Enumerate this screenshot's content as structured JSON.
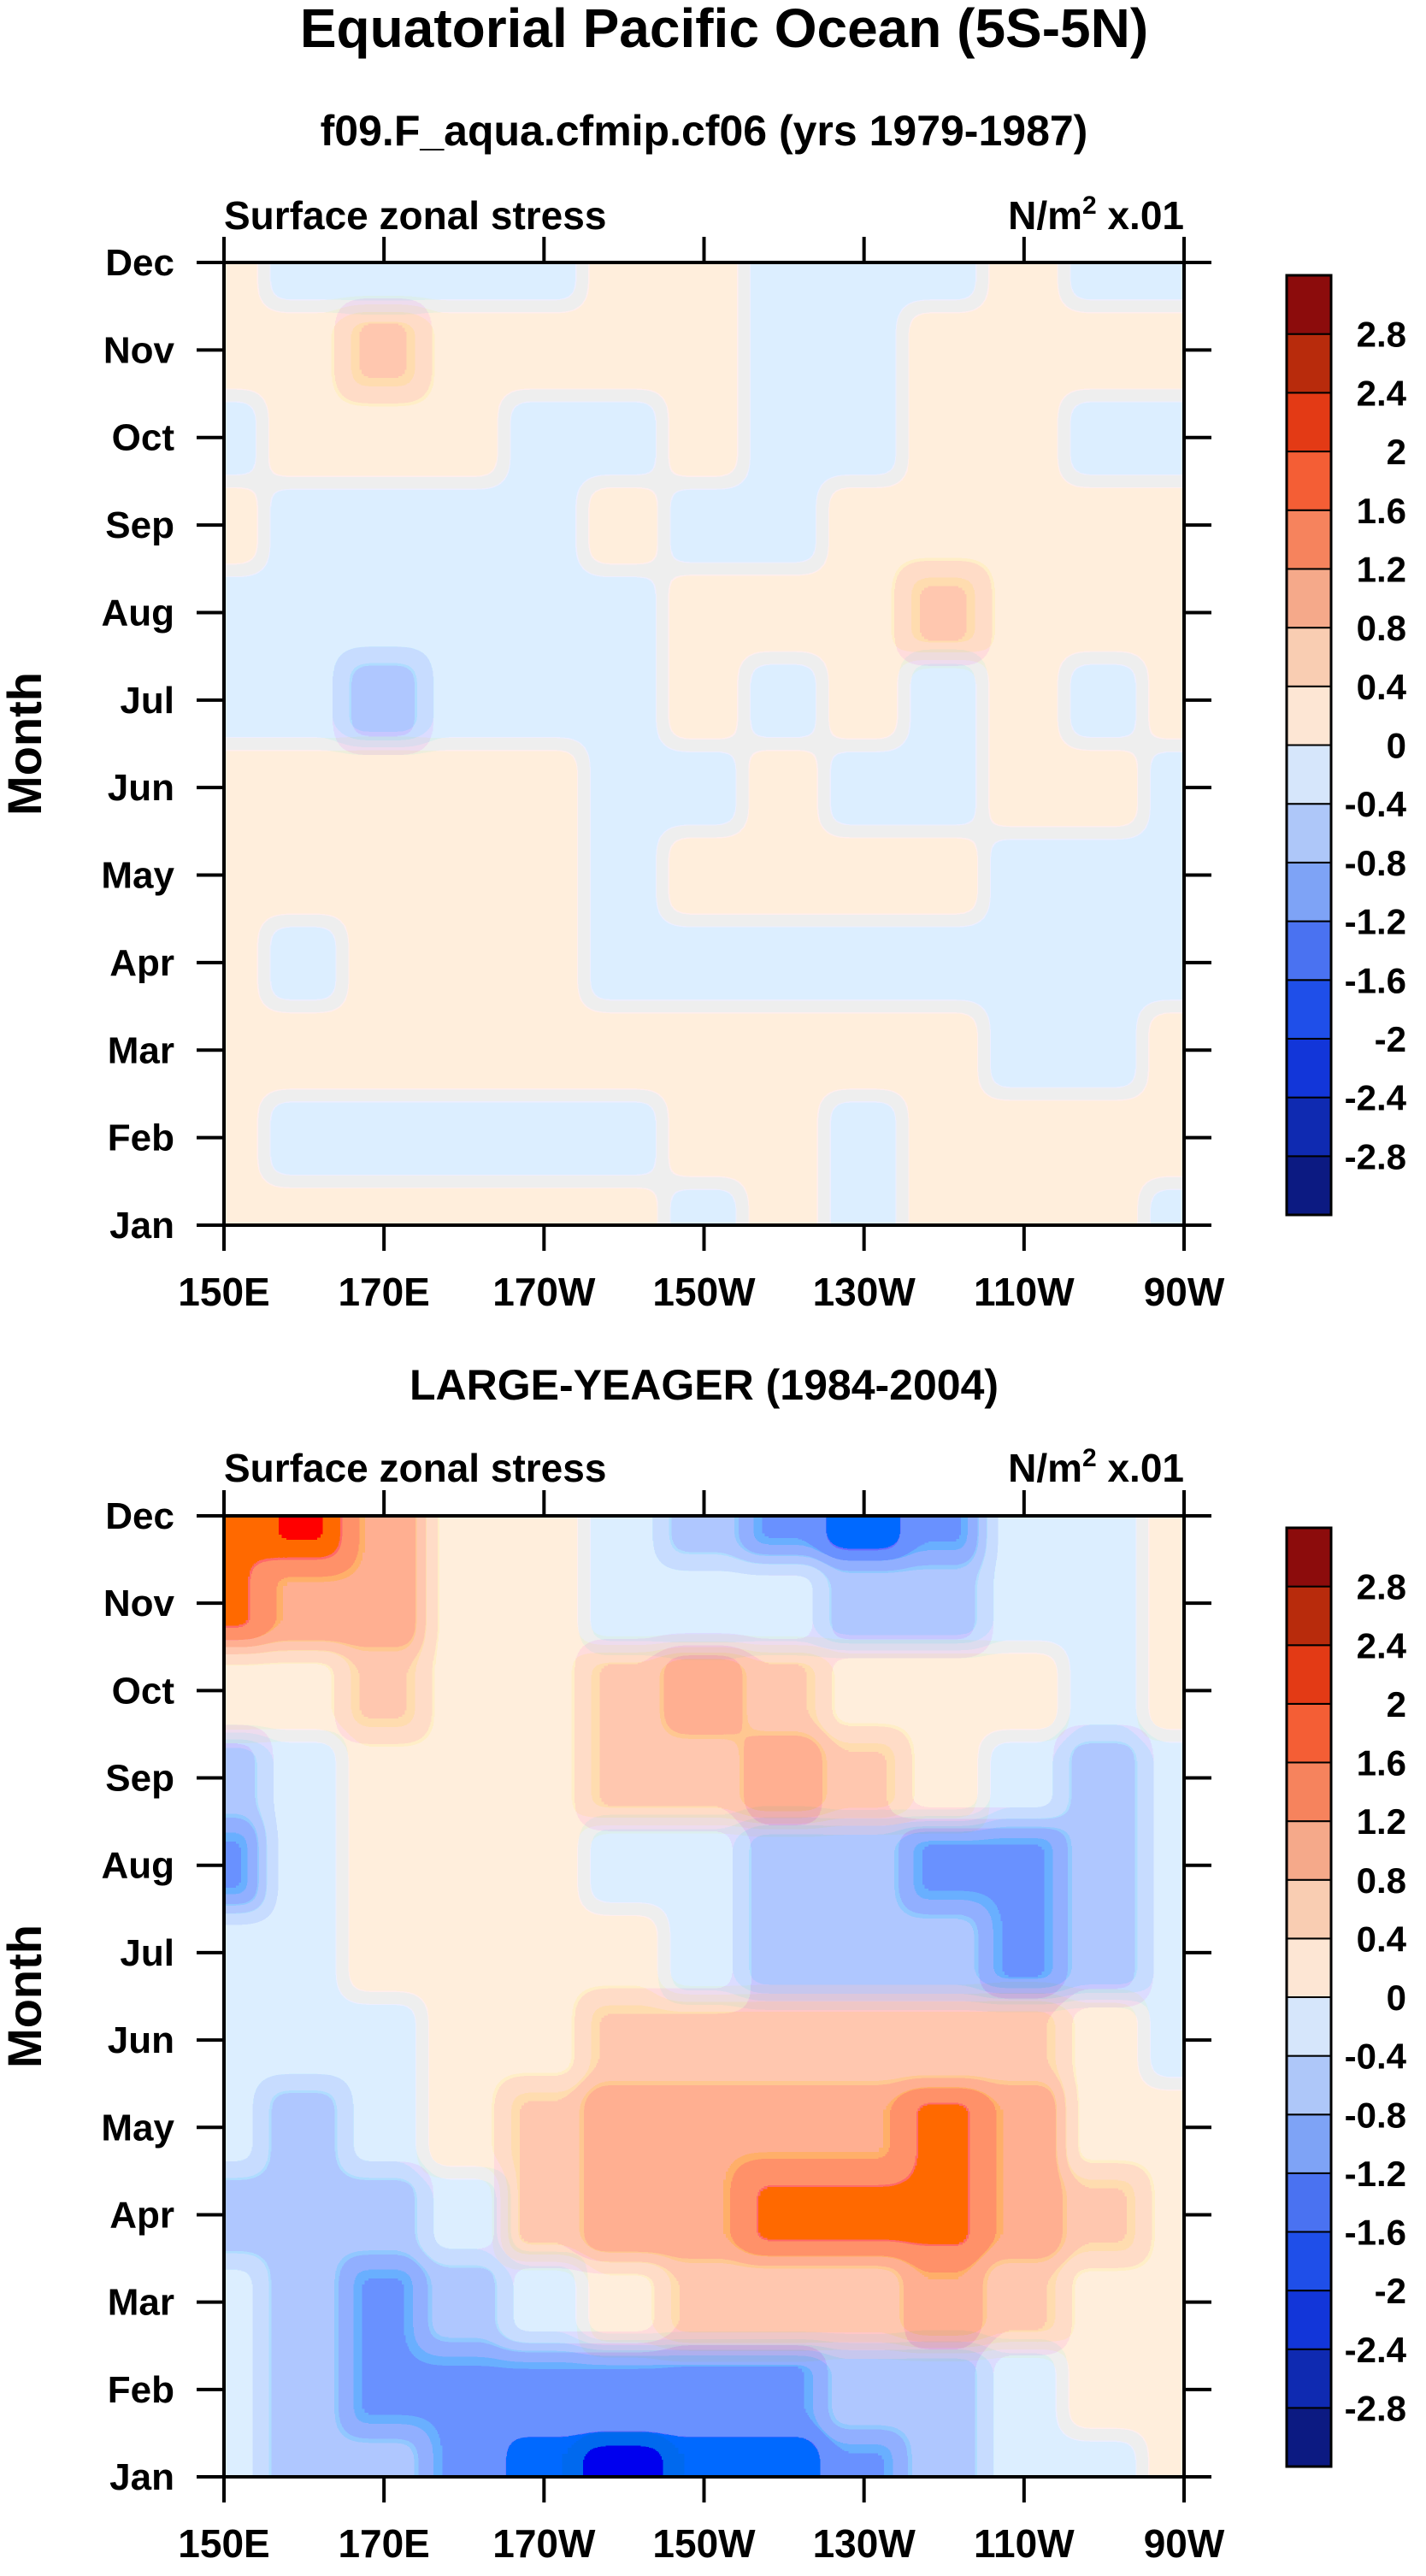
{
  "page_title": "Equatorial Pacific Ocean (5S-5N)",
  "colorbar": {
    "levels": [
      "-2.8",
      "-2.4",
      "-2",
      "-1.6",
      "-1.2",
      "-0.8",
      "-0.4",
      "0",
      "0.4",
      "0.8",
      "1.2",
      "1.6",
      "2",
      "2.4",
      "2.8"
    ],
    "colors": [
      "#0c1a82",
      "#0f2ab1",
      "#1236d9",
      "#1f4fe9",
      "#4a72f1",
      "#7ea3f6",
      "#aec7f9",
      "#d6e6fb",
      "#fde6d4",
      "#f9cdb2",
      "#f5a98a",
      "#f6835d",
      "#f45e35",
      "#e33a15",
      "#b82b0c",
      "#8c0c0c"
    ]
  },
  "chart_data": [
    {
      "type": "heatmap",
      "title": "f09.F_aqua.cfmip.cf06 (yrs 1979-1987)",
      "subtitle_left": "Surface zonal stress",
      "units_main": "N/m",
      "units_sup": "2",
      "units_scale": " x.01",
      "ylabel": "Month",
      "x_labels": [
        "150E",
        "170E",
        "170W",
        "150W",
        "130W",
        "110W",
        "90W"
      ],
      "x_values_deg_east": [
        150,
        170,
        190,
        210,
        230,
        250,
        270
      ],
      "y_labels": [
        "Jan",
        "Feb",
        "Mar",
        "Apr",
        "May",
        "Jun",
        "Jul",
        "Aug",
        "Sep",
        "Oct",
        "Nov",
        "Dec"
      ],
      "xlim": [
        150,
        270
      ],
      "ylim": [
        1,
        12
      ],
      "z": [
        [
          0.2,
          0.1,
          0.2,
          0.1,
          0.0,
          0.1,
          -0.1,
          0.1,
          -0.1,
          0.2,
          0.1,
          0.0,
          -0.1
        ],
        [
          0.1,
          -0.2,
          -0.2,
          -0.3,
          -0.2,
          -0.2,
          0.0,
          0.1,
          -0.1,
          0.1,
          0.0,
          0.1,
          0.2
        ],
        [
          0.2,
          0.2,
          0.3,
          0.1,
          0.2,
          0.1,
          0.2,
          0.1,
          0.0,
          0.0,
          -0.1,
          -0.1,
          0.0
        ],
        [
          0.1,
          -0.1,
          0.1,
          0.2,
          0.1,
          -0.1,
          -0.2,
          -0.1,
          -0.1,
          -0.1,
          -0.1,
          -0.2,
          -0.1
        ],
        [
          0.2,
          0.2,
          0.2,
          0.2,
          0.1,
          -0.1,
          0.1,
          0.2,
          0.1,
          0.0,
          -0.1,
          -0.2,
          -0.1
        ],
        [
          0.1,
          0.2,
          0.1,
          0.2,
          0.0,
          -0.1,
          -0.1,
          0.0,
          -0.1,
          -0.1,
          0.1,
          0.0,
          -0.1
        ],
        [
          -0.1,
          -0.1,
          -0.6,
          -0.3,
          -0.1,
          -0.1,
          0.3,
          -0.1,
          0.0,
          -0.1,
          0.2,
          -0.1,
          0.1
        ],
        [
          -0.1,
          -0.2,
          -0.3,
          -0.2,
          -0.1,
          -0.1,
          0.1,
          0.1,
          0.2,
          0.5,
          0.1,
          0.0,
          0.1
        ],
        [
          0.1,
          -0.1,
          -0.1,
          -0.2,
          -0.1,
          0.1,
          -0.1,
          -0.1,
          0.1,
          0.1,
          0.1,
          0.1,
          0.1
        ],
        [
          -0.1,
          0.1,
          0.1,
          0.2,
          -0.1,
          -0.1,
          0.0,
          -0.1,
          -0.1,
          0.1,
          0.1,
          -0.1,
          -0.1
        ],
        [
          0.2,
          0.2,
          0.5,
          0.2,
          0.1,
          0.1,
          0.1,
          -0.1,
          -0.1,
          0.1,
          0.1,
          0.1,
          0.2
        ],
        [
          0.0,
          -0.1,
          -0.1,
          -0.1,
          -0.1,
          0.1,
          0.2,
          -0.1,
          -0.1,
          -0.1,
          0.1,
          -0.1,
          -0.1
        ]
      ]
    },
    {
      "type": "heatmap",
      "title": "LARGE-YEAGER (1984-2004)",
      "subtitle_left": "Surface zonal stress",
      "units_main": "N/m",
      "units_sup": "2",
      "units_scale": " x.01",
      "ylabel": "Month",
      "x_labels": [
        "150E",
        "170E",
        "170W",
        "150W",
        "130W",
        "110W",
        "90W"
      ],
      "x_values_deg_east": [
        150,
        170,
        190,
        210,
        230,
        250,
        270
      ],
      "y_labels": [
        "Jan",
        "Feb",
        "Mar",
        "Apr",
        "May",
        "Jun",
        "Jul",
        "Aug",
        "Sep",
        "Oct",
        "Nov",
        "Dec"
      ],
      "xlim": [
        150,
        270
      ],
      "ylim": [
        1,
        12
      ],
      "z": [
        [
          -0.2,
          -0.5,
          -0.7,
          -0.9,
          -1.3,
          -1.7,
          -1.5,
          -1.4,
          -1.0,
          -0.7,
          -0.4,
          -0.2,
          0.1
        ],
        [
          -0.3,
          -0.6,
          -1.0,
          -1.0,
          -1.2,
          -1.2,
          -1.0,
          -0.9,
          -0.7,
          -0.5,
          -0.3,
          0.0,
          0.2
        ],
        [
          -0.4,
          -0.7,
          -1.2,
          -0.8,
          -0.3,
          0.3,
          0.6,
          0.6,
          0.7,
          0.8,
          0.6,
          0.2,
          0.1
        ],
        [
          -0.5,
          -0.7,
          -0.5,
          -0.1,
          0.4,
          0.9,
          1.0,
          1.3,
          1.4,
          1.3,
          0.8,
          0.4,
          0.1
        ],
        [
          -0.4,
          -0.6,
          -0.4,
          0.1,
          0.5,
          0.9,
          0.9,
          0.8,
          1.0,
          1.3,
          1.0,
          0.3,
          0.0
        ],
        [
          -0.3,
          -0.4,
          -0.2,
          0.1,
          0.2,
          0.4,
          0.5,
          0.6,
          0.5,
          0.5,
          0.4,
          0.1,
          -0.1
        ],
        [
          -0.4,
          -0.3,
          0.1,
          0.1,
          0.2,
          0.1,
          -0.1,
          -0.5,
          -0.6,
          -0.8,
          -1.0,
          -0.6,
          -0.2
        ],
        [
          -1.0,
          -0.4,
          0.1,
          0.2,
          0.2,
          -0.2,
          -0.3,
          -0.6,
          -0.7,
          -1.1,
          -1.1,
          -0.6,
          -0.2
        ],
        [
          -0.5,
          -0.1,
          0.2,
          0.2,
          0.2,
          0.6,
          0.7,
          0.9,
          0.5,
          0.1,
          -0.4,
          -0.5,
          -0.2
        ],
        [
          0.3,
          0.3,
          0.5,
          0.2,
          0.2,
          0.6,
          0.8,
          0.7,
          0.3,
          0.1,
          0.0,
          -0.3,
          0.3
        ],
        [
          1.2,
          0.9,
          0.8,
          0.3,
          0.1,
          -0.1,
          -0.3,
          -0.4,
          -0.6,
          -0.5,
          -0.3,
          -0.2,
          0.1
        ],
        [
          1.4,
          1.8,
          0.9,
          0.3,
          0.1,
          -0.4,
          -0.8,
          -1.1,
          -1.4,
          -0.9,
          -0.4,
          -0.2,
          0.1
        ]
      ]
    }
  ]
}
